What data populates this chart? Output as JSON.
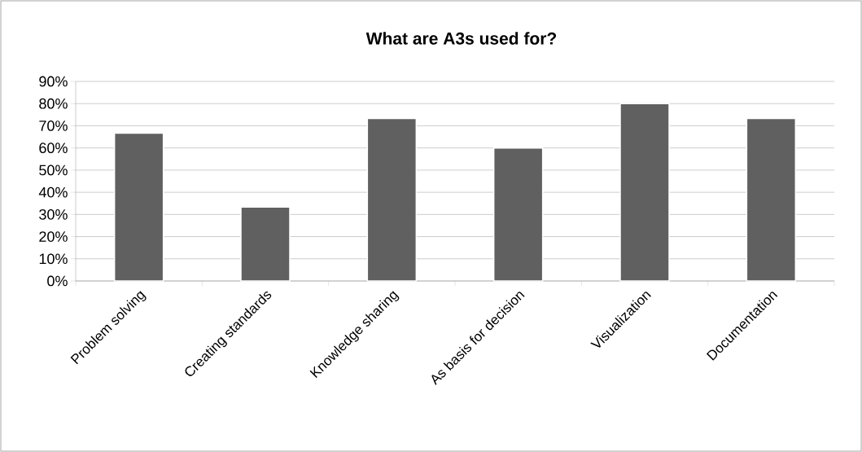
{
  "chart_data": {
    "type": "bar",
    "title": "What are A3s used for?",
    "categories": [
      "Problem solving",
      "Creating standards",
      "Knowledge sharing",
      "As basis for decision",
      "Visualization",
      "Documentation"
    ],
    "values": [
      66.7,
      33.3,
      73.3,
      60,
      80,
      73.3
    ],
    "color": "#606060",
    "ylim": [
      0,
      90
    ],
    "yticks": [
      {
        "value": 0,
        "label": "0%"
      },
      {
        "value": 10,
        "label": "10%"
      },
      {
        "value": 20,
        "label": "20%"
      },
      {
        "value": 30,
        "label": "30%"
      },
      {
        "value": 40,
        "label": "40%"
      },
      {
        "value": 50,
        "label": "50%"
      },
      {
        "value": 60,
        "label": "60%"
      },
      {
        "value": 70,
        "label": "70%"
      },
      {
        "value": 80,
        "label": "80%"
      },
      {
        "value": 90,
        "label": "90%"
      }
    ],
    "grid": "y"
  }
}
